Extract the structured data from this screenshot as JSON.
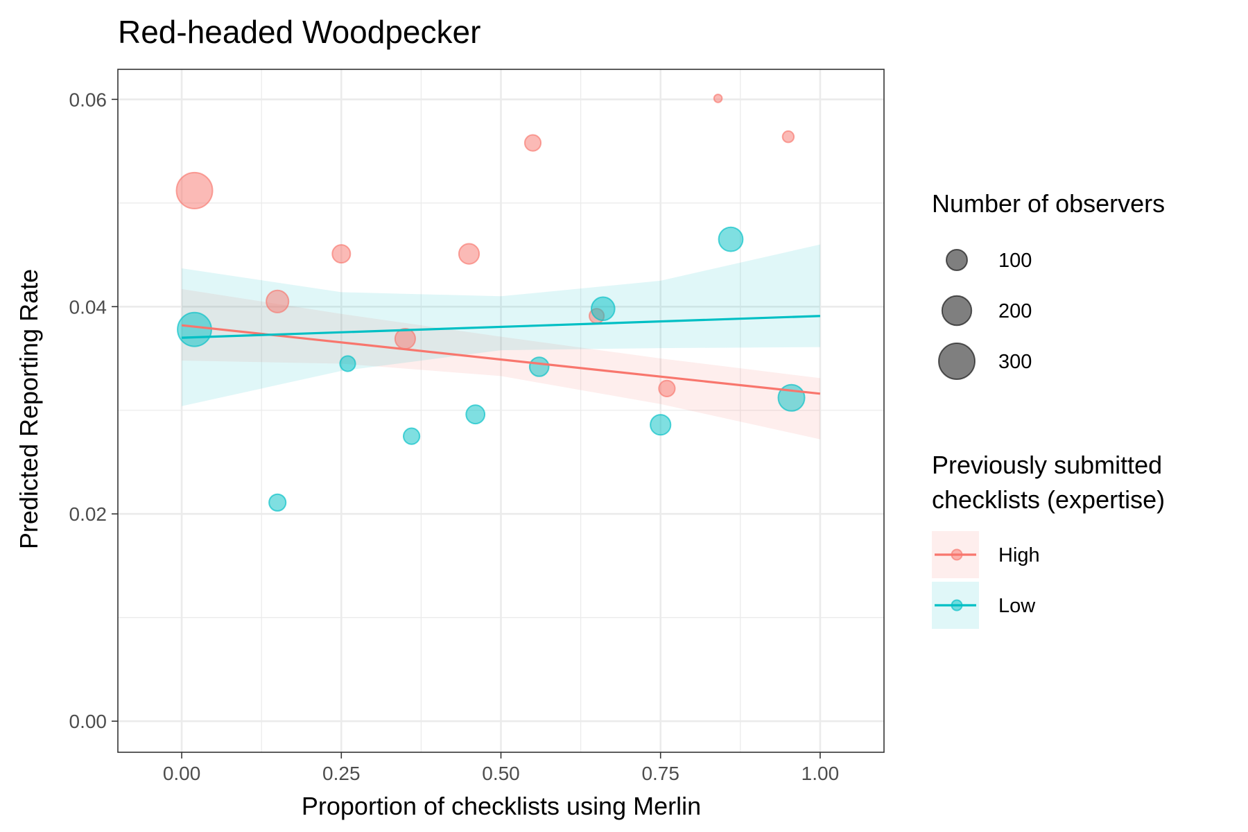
{
  "chart_data": {
    "type": "scatter",
    "title": "Red-headed Woodpecker",
    "xlabel": "Proportion of checklists using Merlin",
    "ylabel": "Predicted Reporting Rate",
    "xlim": [
      -0.1,
      1.1
    ],
    "ylim": [
      -0.003,
      0.0629
    ],
    "x_ticks": [
      0.0,
      0.25,
      0.5,
      0.75,
      1.0
    ],
    "x_tick_labels": [
      "0.00",
      "0.25",
      "0.50",
      "0.75",
      "1.00"
    ],
    "y_ticks": [
      0.0,
      0.02,
      0.04,
      0.06
    ],
    "y_tick_labels": [
      "0.00",
      "0.02",
      "0.04",
      "0.06"
    ],
    "x_minor_ticks": [
      0.125,
      0.375,
      0.625,
      0.875
    ],
    "y_minor_ticks": [
      0.01,
      0.03,
      0.05
    ],
    "grid": true,
    "series": [
      {
        "name": "High",
        "color": "#F8766D",
        "points": [
          {
            "x": 0.02,
            "y": 0.0512,
            "n": 300
          },
          {
            "x": 0.15,
            "y": 0.0405,
            "n": 115
          },
          {
            "x": 0.25,
            "y": 0.0451,
            "n": 75
          },
          {
            "x": 0.35,
            "y": 0.0369,
            "n": 95
          },
          {
            "x": 0.45,
            "y": 0.0451,
            "n": 95
          },
          {
            "x": 0.55,
            "y": 0.0558,
            "n": 60
          },
          {
            "x": 0.65,
            "y": 0.0391,
            "n": 50
          },
          {
            "x": 0.76,
            "y": 0.0321,
            "n": 60
          },
          {
            "x": 0.84,
            "y": 0.0601,
            "n": 15
          },
          {
            "x": 0.95,
            "y": 0.0564,
            "n": 30
          }
        ],
        "trend": {
          "x": [
            0.0,
            1.0
          ],
          "y": [
            0.0382,
            0.0316
          ]
        },
        "ci": {
          "x": [
            0.0,
            0.25,
            0.5,
            0.75,
            1.0
          ],
          "lower": [
            0.0348,
            0.0345,
            0.0333,
            0.0306,
            0.0272
          ],
          "upper": [
            0.0417,
            0.0393,
            0.0371,
            0.035,
            0.0331
          ]
        }
      },
      {
        "name": "Low",
        "color": "#00BFC4",
        "points": [
          {
            "x": 0.02,
            "y": 0.0378,
            "n": 265
          },
          {
            "x": 0.15,
            "y": 0.0211,
            "n": 65
          },
          {
            "x": 0.26,
            "y": 0.0345,
            "n": 55
          },
          {
            "x": 0.36,
            "y": 0.0275,
            "n": 60
          },
          {
            "x": 0.46,
            "y": 0.0296,
            "n": 80
          },
          {
            "x": 0.56,
            "y": 0.0342,
            "n": 85
          },
          {
            "x": 0.66,
            "y": 0.0398,
            "n": 125
          },
          {
            "x": 0.75,
            "y": 0.0286,
            "n": 95
          },
          {
            "x": 0.86,
            "y": 0.0465,
            "n": 135
          },
          {
            "x": 0.955,
            "y": 0.0312,
            "n": 160
          }
        ],
        "trend": {
          "x": [
            0.0,
            1.0
          ],
          "y": [
            0.037,
            0.0391
          ]
        },
        "ci": {
          "x": [
            0.0,
            0.25,
            0.5,
            0.75,
            1.0
          ],
          "lower": [
            0.0304,
            0.0338,
            0.0358,
            0.036,
            0.0361
          ],
          "upper": [
            0.0437,
            0.0414,
            0.041,
            0.0425,
            0.046
          ]
        }
      }
    ],
    "legends": {
      "size_title": "Number of observers",
      "size_entries": [
        {
          "label": "100",
          "n": 100
        },
        {
          "label": "200",
          "n": 200
        },
        {
          "label": "300",
          "n": 300
        }
      ],
      "color_title_lines": [
        "Previously submitted",
        "checklists (expertise)"
      ],
      "color_entries": [
        {
          "label": "High",
          "color": "#F8766D"
        },
        {
          "label": "Low",
          "color": "#00BFC4"
        }
      ],
      "placement": "right"
    }
  }
}
